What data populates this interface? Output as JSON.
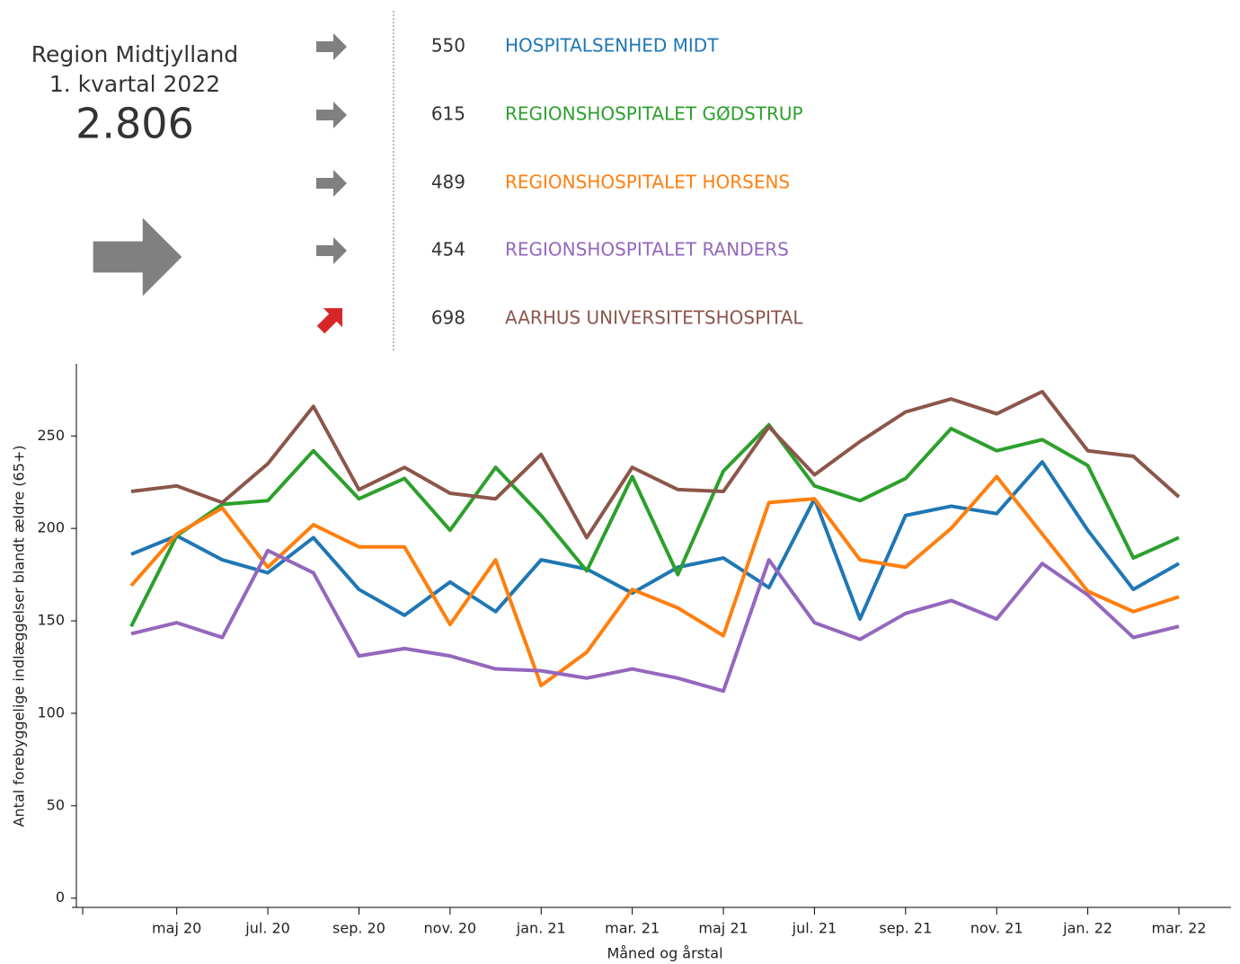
{
  "summary": {
    "region": "Region Midtjylland",
    "period": "1. kvartal 2022",
    "total": "2.806",
    "trend": "flat"
  },
  "chart_data": {
    "type": "line",
    "y_label": "Antal forebyggelige indlæggelser blandt ældre (65+)",
    "x_label": "Måned og årstal",
    "categories": [
      null,
      "maj 20",
      null,
      "jul. 20",
      null,
      "sep. 20",
      null,
      "nov. 20",
      null,
      "jan. 21",
      null,
      "mar. 21",
      null,
      "maj 21",
      null,
      "jul. 21",
      null,
      "sep. 21",
      null,
      "nov. 21",
      null,
      "jan. 22",
      null,
      "mar. 22"
    ],
    "ylim": [
      -5,
      289
    ],
    "yticks": [
      0,
      50,
      100,
      150,
      200,
      250
    ],
    "series": [
      {
        "name": "HOSPITALSENHED MIDT",
        "color": "#1f77b4",
        "total": 550,
        "trend": "flat",
        "values": [
          186,
          196,
          183,
          176,
          195,
          167,
          153,
          171,
          155,
          183,
          178,
          165,
          179,
          184,
          168,
          216,
          151,
          207,
          212,
          208,
          236,
          199,
          167,
          181
        ]
      },
      {
        "name": "REGIONSHOSPITALET GØDSTRUP",
        "color": "#2ca02c",
        "total": 615,
        "trend": "flat",
        "values": [
          147,
          196,
          213,
          215,
          242,
          216,
          227,
          199,
          233,
          207,
          177,
          228,
          175,
          231,
          256,
          223,
          215,
          227,
          254,
          242,
          248,
          234,
          184,
          195
        ]
      },
      {
        "name": "REGIONSHOSPITALET HORSENS",
        "color": "#ff7f0e",
        "total": 489,
        "trend": "flat",
        "values": [
          169,
          197,
          211,
          179,
          202,
          190,
          190,
          148,
          183,
          115,
          133,
          167,
          157,
          142,
          214,
          216,
          183,
          179,
          200,
          228,
          197,
          166,
          155,
          163
        ]
      },
      {
        "name": "REGIONSHOSPITALET RANDERS",
        "color": "#9467bd",
        "total": 454,
        "trend": "flat",
        "values": [
          143,
          149,
          141,
          188,
          176,
          131,
          135,
          131,
          124,
          123,
          119,
          124,
          119,
          112,
          183,
          149,
          140,
          154,
          161,
          151,
          181,
          164,
          141,
          147
        ]
      },
      {
        "name": "AARHUS UNIVERSITETSHOSPITAL",
        "color": "#8c564b",
        "total": 698,
        "trend": "up",
        "values": [
          220,
          223,
          214,
          235,
          266,
          221,
          233,
          219,
          216,
          240,
          195,
          233,
          221,
          220,
          255,
          229,
          247,
          263,
          270,
          262,
          274,
          242,
          239,
          217
        ]
      }
    ]
  }
}
